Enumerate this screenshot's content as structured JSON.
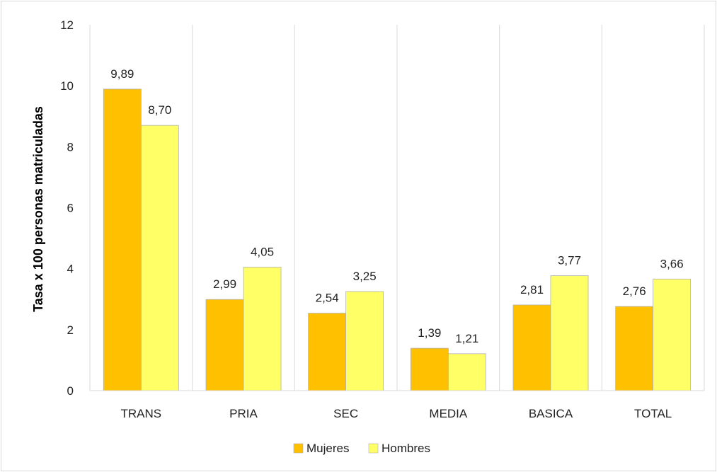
{
  "chart_data": {
    "type": "bar",
    "ylabel": "Tasa x 100 personas matriculadas",
    "xlabel": "",
    "ylim": [
      0,
      12
    ],
    "yticks": [
      0,
      2,
      4,
      6,
      8,
      10,
      12
    ],
    "grid": "vertical separators between categories",
    "legend_position": "bottom",
    "categories": [
      "TRANS",
      "PRIA",
      "SEC",
      "MEDIA",
      "BASICA",
      "TOTAL"
    ],
    "series": [
      {
        "name": "Mujeres",
        "color": "#FFC000",
        "values": [
          9.89,
          2.99,
          2.54,
          1.39,
          2.81,
          2.76
        ],
        "labels": [
          "9,89",
          "2,99",
          "2,54",
          "1,39",
          "2,81",
          "2,76"
        ]
      },
      {
        "name": "Hombres",
        "color": "#FFFF66",
        "values": [
          8.7,
          4.05,
          3.25,
          1.21,
          3.77,
          3.66
        ],
        "labels": [
          "8,70",
          "4,05",
          "3,25",
          "1,21",
          "3,77",
          "3,66"
        ]
      }
    ]
  }
}
